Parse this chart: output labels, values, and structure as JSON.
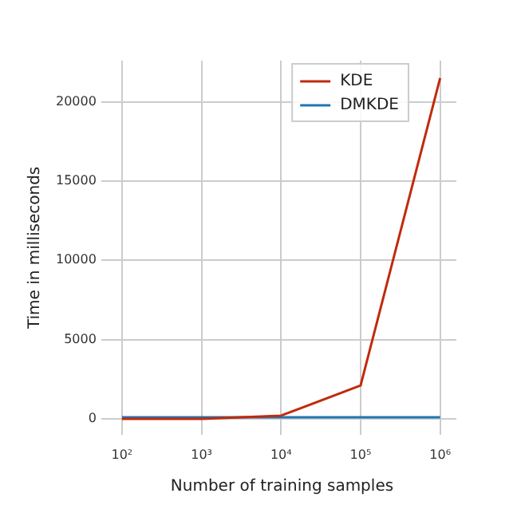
{
  "chart_data": {
    "type": "line",
    "xlabel": "Number of training samples",
    "ylabel": "Time in milliseconds",
    "x": [
      100,
      1000,
      10000,
      100000,
      1000000
    ],
    "series": [
      {
        "name": "KDE",
        "color": "#c12a0c",
        "values": [
          0,
          0,
          200,
          2100,
          21500
        ]
      },
      {
        "name": "DMKDE",
        "color": "#1f77b4",
        "values": [
          100,
          100,
          100,
          100,
          100
        ]
      }
    ],
    "log": "x",
    "xlim": [
      66,
      1600000
    ],
    "xticks": [
      {
        "value": 100,
        "label": "10²"
      },
      {
        "value": 1000,
        "label": "10³"
      },
      {
        "value": 10000,
        "label": "10⁴"
      },
      {
        "value": 100000,
        "label": "10⁵"
      },
      {
        "value": 1000000,
        "label": "10⁶"
      }
    ],
    "ylim": [
      -1000,
      22600
    ],
    "yticks": [
      0,
      5000,
      10000,
      15000,
      20000
    ],
    "grid": true,
    "legend": "top right",
    "marker": "none",
    "line_style": "solid"
  }
}
